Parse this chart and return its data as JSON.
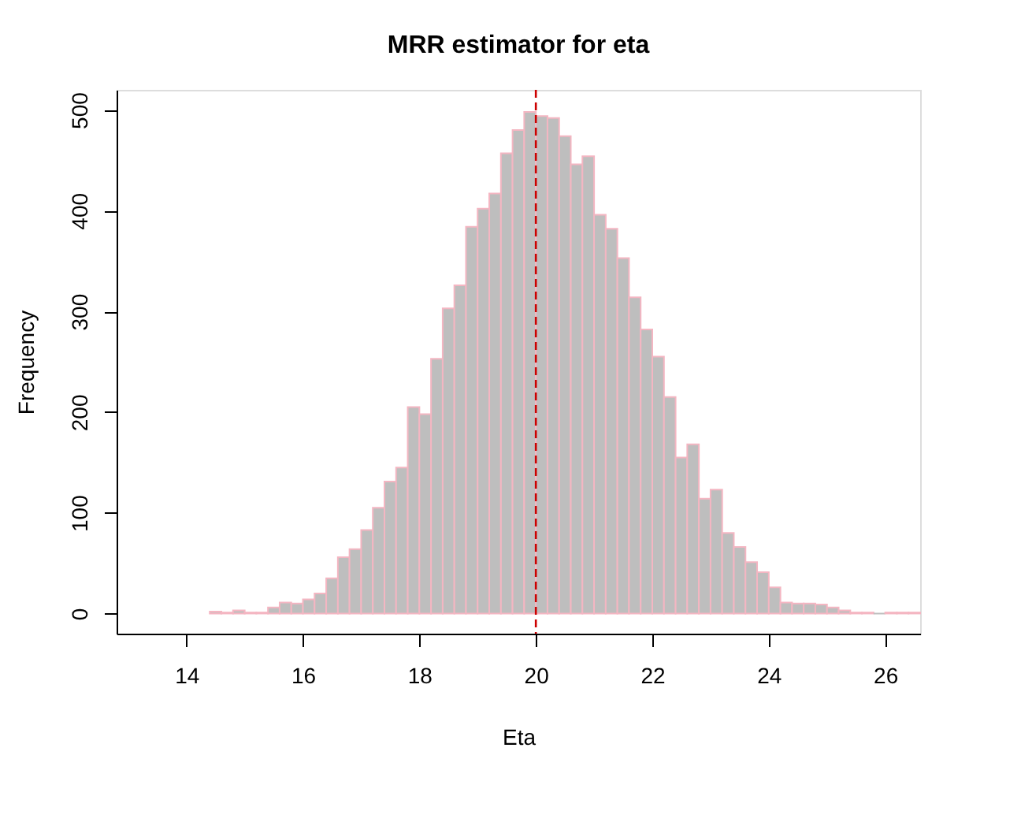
{
  "chart_data": {
    "type": "histogram",
    "title": "MRR estimator for eta",
    "xlabel": "Eta",
    "ylabel": "Frequency",
    "bins": [
      14.4,
      14.6,
      14.8,
      15.0,
      15.2,
      15.4,
      15.6,
      15.8,
      16.0,
      16.2,
      16.4,
      16.6,
      16.8,
      17.0,
      17.2,
      17.4,
      17.6,
      17.8,
      18.0,
      18.2,
      18.4,
      18.6,
      18.8,
      19.0,
      19.2,
      19.4,
      19.6,
      19.8,
      20.0,
      20.2,
      20.4,
      20.6,
      20.8,
      21.0,
      21.2,
      21.4,
      21.6,
      21.8,
      22.0,
      22.2,
      22.4,
      22.6,
      22.8,
      23.0,
      23.2,
      23.4,
      23.6,
      23.8,
      24.0,
      24.2,
      24.4,
      24.6,
      24.8,
      25.0,
      25.2,
      25.4,
      25.6,
      25.8,
      26.0,
      26.2,
      26.4,
      26.6
    ],
    "values": [
      2,
      1,
      3,
      1,
      1,
      6,
      11,
      10,
      14,
      20,
      35,
      56,
      64,
      83,
      105,
      131,
      145,
      205,
      198,
      253,
      303,
      326,
      384,
      402,
      417,
      457,
      480,
      498,
      494,
      492,
      474,
      446,
      454,
      396,
      382,
      353,
      314,
      282,
      255,
      215,
      155,
      168,
      114,
      123,
      80,
      66,
      51,
      41,
      26,
      11,
      10,
      10,
      9,
      6,
      3,
      1,
      1,
      0,
      1,
      1,
      1
    ],
    "color": "#bebebe",
    "xlim": [
      12.8,
      26.6
    ],
    "ylim": [
      -20,
      520
    ],
    "xticks": [
      14,
      16,
      18,
      20,
      22,
      24,
      26
    ],
    "yticks": [
      0,
      100,
      200,
      300,
      400,
      500
    ],
    "ref_lines": [
      {
        "axis": "x",
        "value": 20,
        "color": "#cc0000",
        "line_style": "dashed"
      }
    ],
    "grid": false
  }
}
